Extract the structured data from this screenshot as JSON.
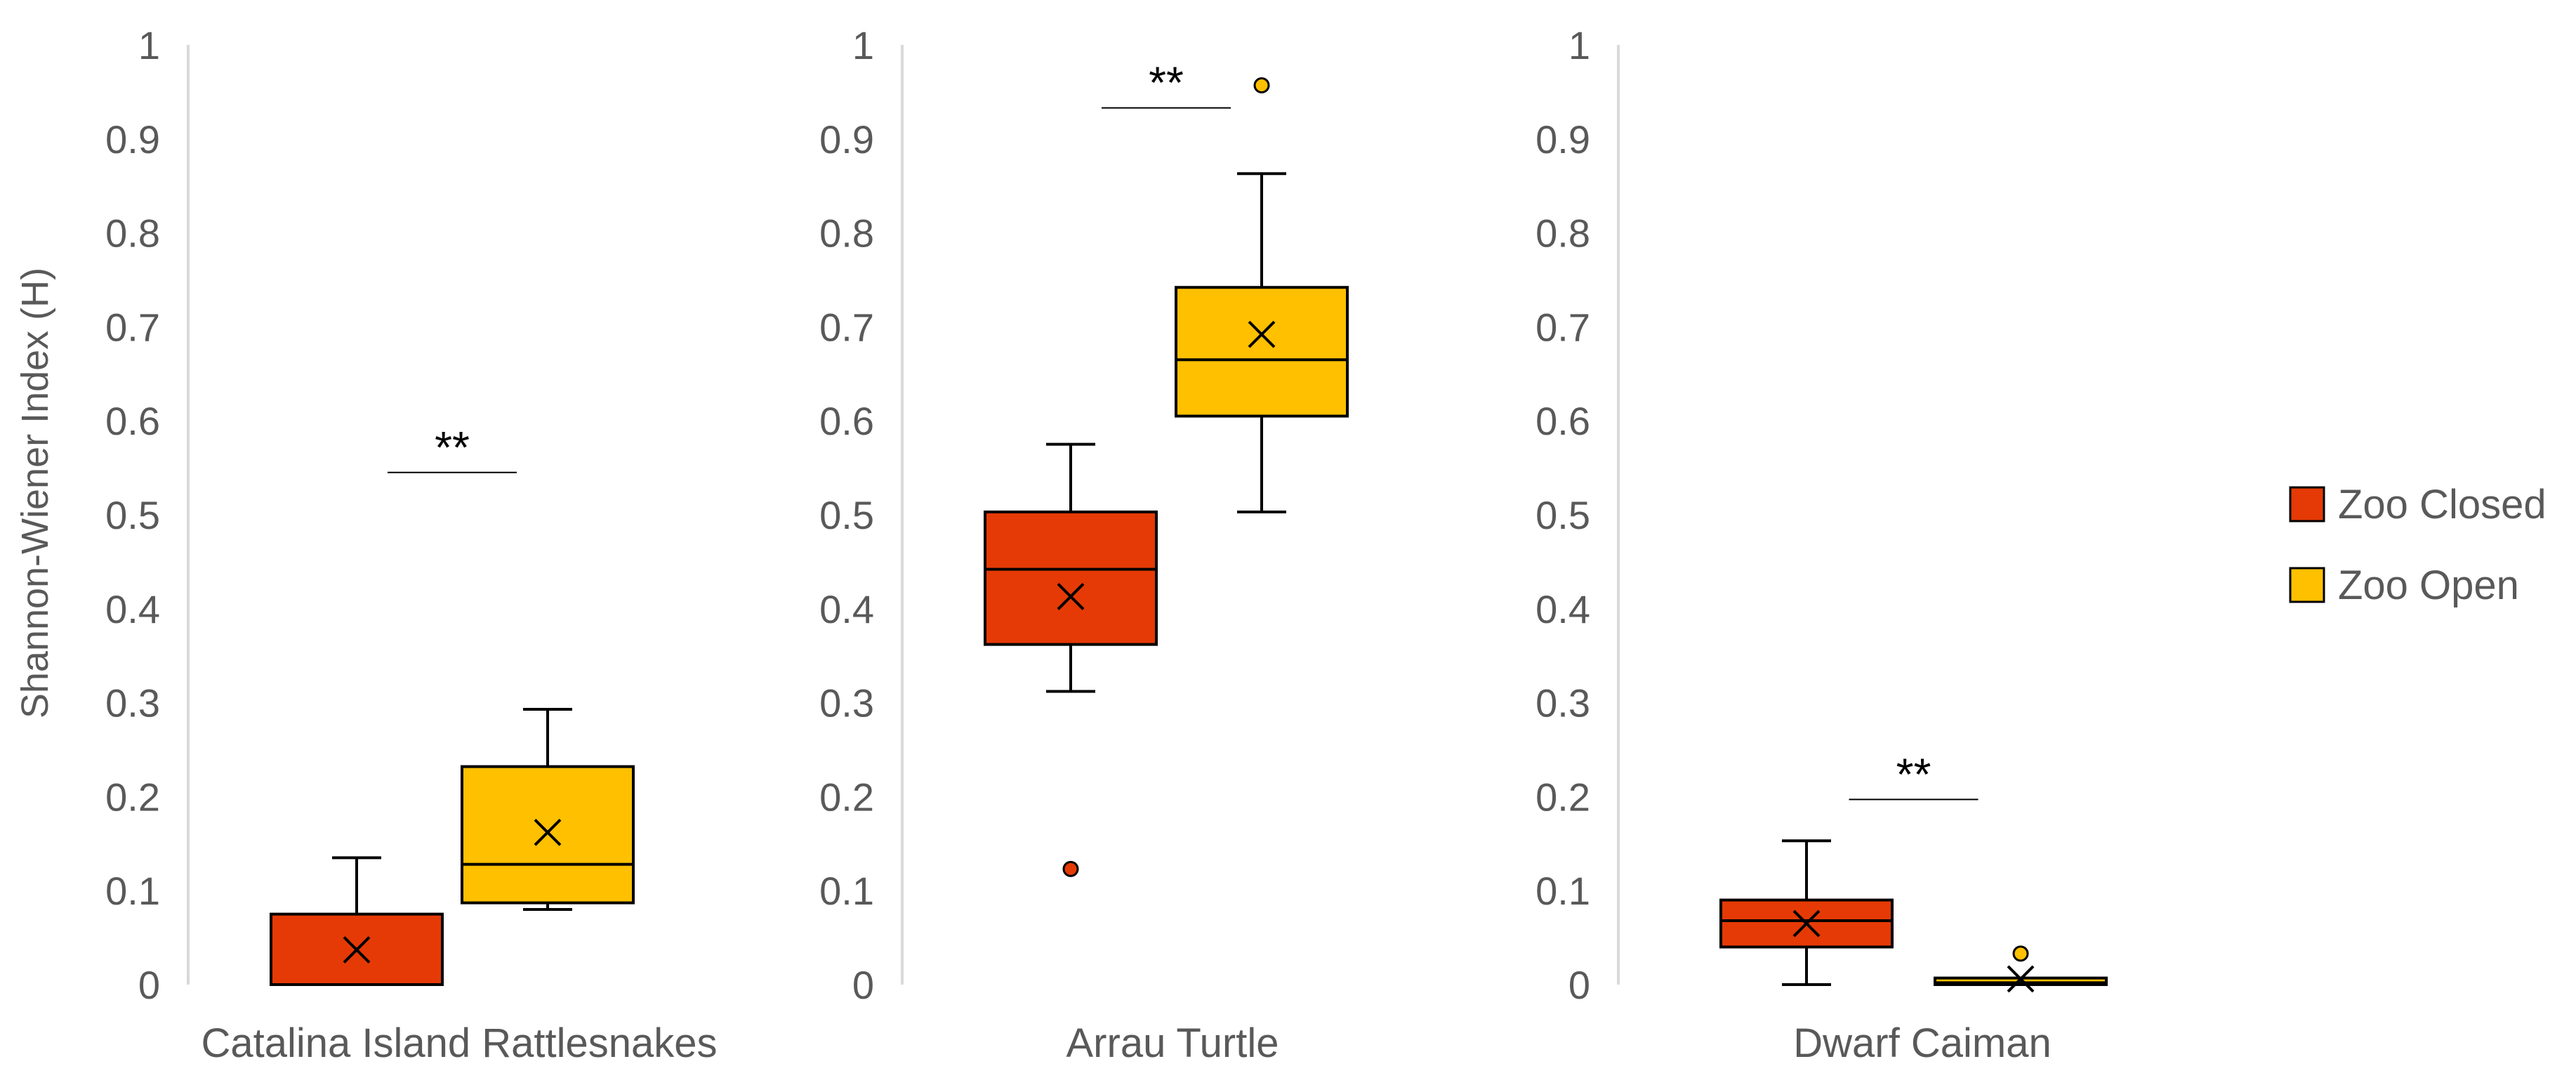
{
  "chart_data": {
    "type": "box",
    "ylabel": "Shannon-Wiener Index (H)",
    "ylim": [
      0,
      1
    ],
    "yticks": [
      "0",
      "0.1",
      "0.2",
      "0.3",
      "0.4",
      "0.5",
      "0.6",
      "0.7",
      "0.8",
      "0.9",
      "1"
    ],
    "series": [
      {
        "name": "Zoo Closed",
        "color": "#E53A05"
      },
      {
        "name": "Zoo Open",
        "color": "#FFC000"
      }
    ],
    "panels": [
      {
        "category": "Catalina Island Rattlesnakes",
        "significance": "**",
        "sig_y": 0.545,
        "boxes": [
          {
            "series": "Zoo Closed",
            "whisker_low": 0,
            "q1": 0,
            "median": 0,
            "q3": 0.075,
            "whisker_high": 0.135,
            "mean": 0.037,
            "outliers": []
          },
          {
            "series": "Zoo Open",
            "whisker_low": 0.08,
            "q1": 0.087,
            "median": 0.128,
            "q3": 0.232,
            "whisker_high": 0.293,
            "mean": 0.162,
            "outliers": []
          }
        ]
      },
      {
        "category": "Arrau Turtle",
        "significance": "**",
        "sig_y": 0.933,
        "boxes": [
          {
            "series": "Zoo Closed",
            "whisker_low": 0.312,
            "q1": 0.362,
            "median": 0.442,
            "q3": 0.503,
            "whisker_high": 0.575,
            "mean": 0.413,
            "outliers": [
              0.123
            ]
          },
          {
            "series": "Zoo Open",
            "whisker_low": 0.503,
            "q1": 0.605,
            "median": 0.665,
            "q3": 0.742,
            "whisker_high": 0.863,
            "mean": 0.692,
            "outliers": [
              0.957
            ]
          }
        ]
      },
      {
        "category": "Dwarf Caiman",
        "significance": "**",
        "sig_y": 0.197,
        "boxes": [
          {
            "series": "Zoo Closed",
            "whisker_low": 0,
            "q1": 0.04,
            "median": 0.068,
            "q3": 0.09,
            "whisker_high": 0.153,
            "mean": 0.065,
            "outliers": []
          },
          {
            "series": "Zoo Open",
            "whisker_low": 0,
            "q1": 0,
            "median": 0.002,
            "q3": 0.007,
            "whisker_high": 0.007,
            "mean": 0.006,
            "outliers": [
              0.033
            ]
          }
        ]
      }
    ],
    "legend": [
      "Zoo Closed",
      "Zoo Open"
    ],
    "legend_position": "right"
  }
}
